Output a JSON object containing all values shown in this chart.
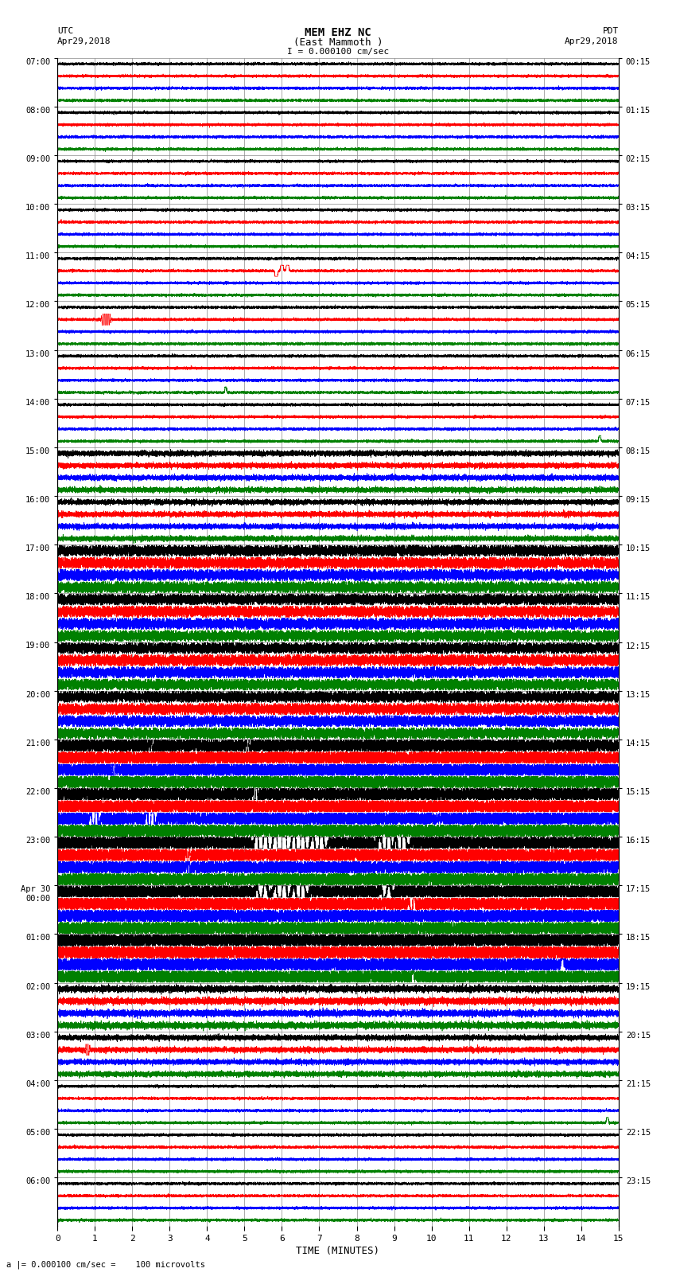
{
  "title_line1": "MEM EHZ NC",
  "title_line2": "(East Mammoth )",
  "scale_label": "I = 0.000100 cm/sec",
  "left_label_top": "UTC",
  "left_label_date": "Apr29,2018",
  "right_label_top": "PDT",
  "right_label_date": "Apr29,2018",
  "bottom_label": "TIME (MINUTES)",
  "bottom_note": "a |= 0.000100 cm/sec =    100 microvolts",
  "xlabel_ticks": [
    0,
    1,
    2,
    3,
    4,
    5,
    6,
    7,
    8,
    9,
    10,
    11,
    12,
    13,
    14,
    15
  ],
  "utc_labels": [
    "07:00",
    "08:00",
    "09:00",
    "10:00",
    "11:00",
    "12:00",
    "13:00",
    "14:00",
    "15:00",
    "16:00",
    "17:00",
    "18:00",
    "19:00",
    "20:00",
    "21:00",
    "22:00",
    "23:00",
    "Apr 30\n00:00",
    "01:00",
    "02:00",
    "03:00",
    "04:00",
    "05:00",
    "06:00"
  ],
  "pdt_labels": [
    "00:15",
    "01:15",
    "02:15",
    "03:15",
    "04:15",
    "05:15",
    "06:15",
    "07:15",
    "08:15",
    "09:15",
    "10:15",
    "11:15",
    "12:15",
    "13:15",
    "14:15",
    "15:15",
    "16:15",
    "17:15",
    "18:15",
    "19:15",
    "20:15",
    "21:15",
    "22:15",
    "23:15"
  ],
  "n_rows": 24,
  "traces_per_row": 4,
  "colors": [
    "black",
    "red",
    "blue",
    "green"
  ],
  "bg_color": "white",
  "grid_color": "#888888",
  "minutes": 15,
  "sample_rate": 50
}
